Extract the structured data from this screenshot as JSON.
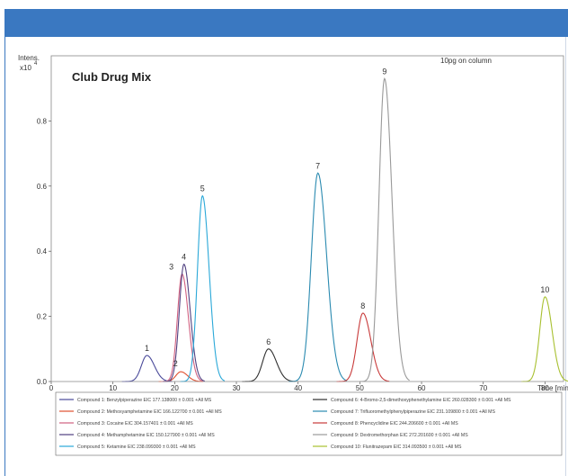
{
  "chart_data": {
    "type": "line",
    "title": "Club Drug Mix",
    "annotation": "10pg on column",
    "ylabel": "Intens.",
    "yexp": "x10",
    "yexp_power": "4",
    "xlabel": "Time [min]",
    "xlim": [
      0,
      83
    ],
    "ylim": [
      0,
      1.0
    ],
    "xticks": [
      0,
      10,
      20,
      30,
      40,
      50,
      60,
      70,
      80
    ],
    "yticks": [
      0.0,
      0.2,
      0.4,
      0.6,
      0.8
    ],
    "ytick_labels": [
      "0.0",
      "0.2",
      "0.4",
      "0.6",
      "0.8"
    ],
    "xtick_labels": [
      "0",
      "10",
      "20",
      "30",
      "40",
      "50",
      "60",
      "70",
      "80"
    ],
    "grid": false,
    "legend_position": "bottom",
    "series": [
      {
        "name": "Compound 1: Benzylpiperazine   EIC 177.138000 ± 0.001   +All MS",
        "label": "1",
        "color": "#4a4a9a",
        "rt": 15.5,
        "height": 0.08,
        "width": 0.9
      },
      {
        "name": "Compound 2: Methoxyamphetamine   EIC 166.122700 ± 0.001   +All MS",
        "label": "2",
        "color": "#e05030",
        "rt": 21.0,
        "height": 0.03,
        "width": 0.8
      },
      {
        "name": "Compound 3: Cocaine   EIC 304.157401 ± 0.001   +All MS",
        "label": "3",
        "color": "#d06080",
        "rt": 21.2,
        "height": 0.33,
        "width": 0.75
      },
      {
        "name": "Compound 4: Methamphetamine   EIC 150.127900 ± 0.001   +All MS",
        "label": "4",
        "color": "#504080",
        "rt": 21.5,
        "height": 0.36,
        "width": 0.75
      },
      {
        "name": "Compound 5: Ketamine   EIC 238.099300 ± 0.001   +All MS",
        "label": "5",
        "color": "#2aa8d8",
        "rt": 24.5,
        "height": 0.57,
        "width": 0.8
      },
      {
        "name": "Compound 6: 4-Bromo-2,5-dimethoxyphenethylamine   EIC 260.028300 ± 0.001   +All MS",
        "label": "6",
        "color": "#303030",
        "rt": 35.2,
        "height": 0.1,
        "width": 0.95
      },
      {
        "name": "Compound 7: Trifluoromethylphenylpiperazine   EIC 231.109800 ± 0.001   +All MS",
        "label": "7",
        "color": "#2a8ab0",
        "rt": 43.2,
        "height": 0.64,
        "width": 1.05
      },
      {
        "name": "Compound 8: Phencyclidine   EIC 244.206600 ± 0.001   +All MS",
        "label": "8",
        "color": "#c83a3a",
        "rt": 50.5,
        "height": 0.21,
        "width": 0.95
      },
      {
        "name": "Compound 9: Dextromethorphan   EIC 272.201600 ± 0.001   +All MS",
        "label": "9",
        "color": "#999999",
        "rt": 54.0,
        "height": 0.93,
        "width": 0.9
      },
      {
        "name": "Compound 10: Flunitrazepam   EIC 314.093500 ± 0.001   +All MS",
        "label": "10",
        "color": "#a8c030",
        "rt": 80.0,
        "height": 0.26,
        "width": 0.85
      }
    ]
  }
}
